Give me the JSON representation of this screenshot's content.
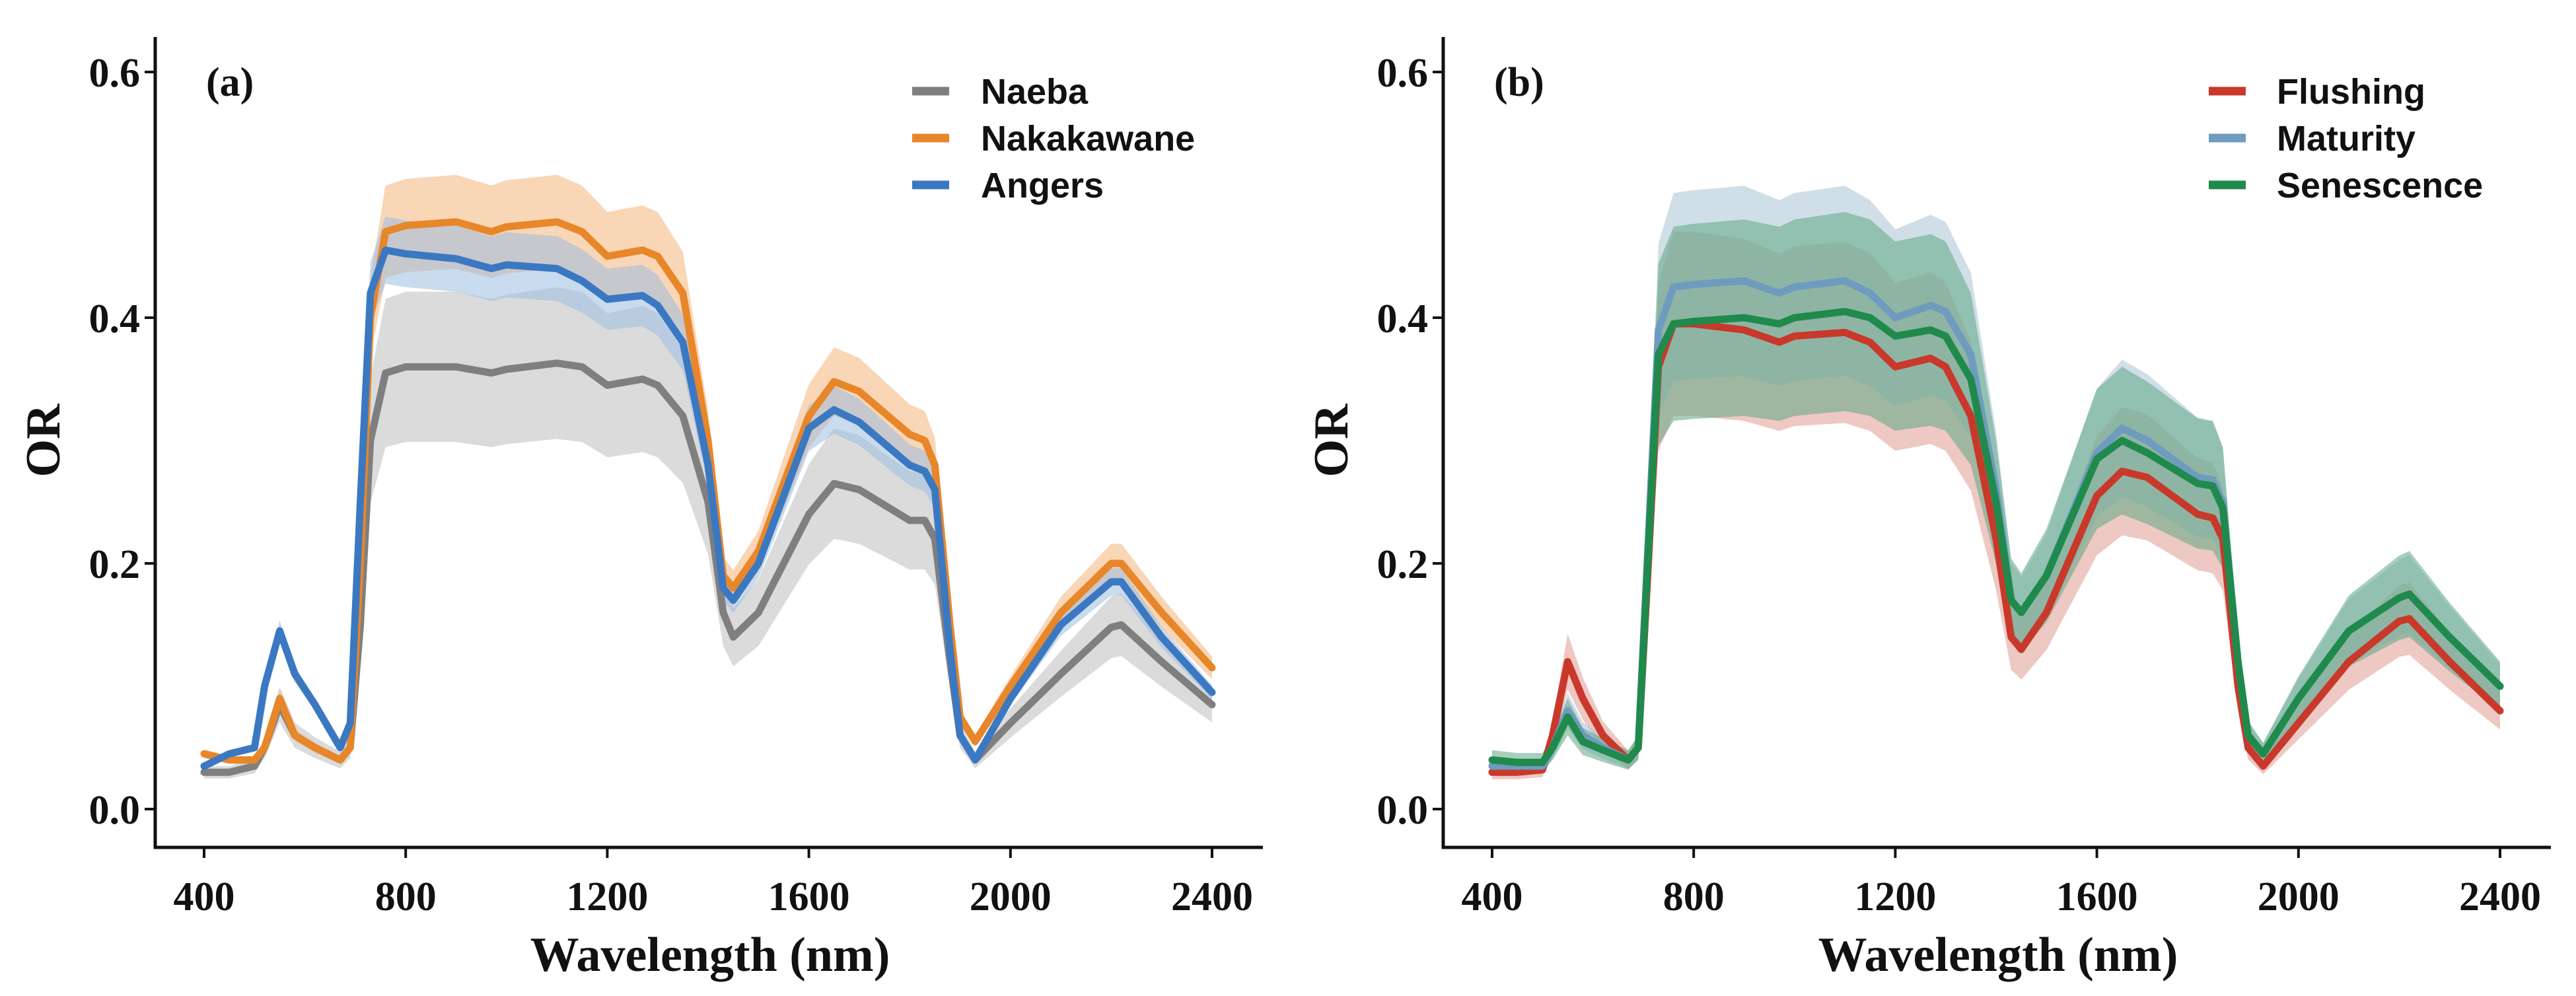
{
  "chart_data": [
    {
      "type": "line",
      "panel_label": "(a)",
      "xlabel": "Wavelength (nm)",
      "ylabel": "OR",
      "xlim": [
        400,
        2400
      ],
      "ylim": [
        0.0,
        0.6
      ],
      "xticks": [
        "400",
        "800",
        "1200",
        "1600",
        "2000",
        "2400"
      ],
      "yticks": [
        "0.0",
        "0.2",
        "0.4",
        "0.6"
      ],
      "legend_position": "top-right",
      "x": [
        400,
        450,
        500,
        520,
        550,
        580,
        620,
        670,
        690,
        710,
        730,
        760,
        800,
        900,
        970,
        1000,
        1100,
        1150,
        1200,
        1270,
        1300,
        1350,
        1400,
        1430,
        1450,
        1500,
        1600,
        1650,
        1700,
        1800,
        1830,
        1850,
        1880,
        1900,
        1930,
        2000,
        2100,
        2200,
        2220,
        2300,
        2400
      ],
      "series": [
        {
          "name": "Naeba",
          "color": "#7f7f7f",
          "band_color": "#bdbdbd",
          "band_rel": 0.17,
          "values": [
            0.03,
            0.03,
            0.035,
            0.05,
            0.085,
            0.06,
            0.05,
            0.04,
            0.05,
            0.15,
            0.3,
            0.355,
            0.36,
            0.36,
            0.355,
            0.358,
            0.363,
            0.36,
            0.345,
            0.35,
            0.345,
            0.32,
            0.25,
            0.16,
            0.14,
            0.16,
            0.24,
            0.265,
            0.26,
            0.235,
            0.235,
            0.22,
            0.12,
            0.06,
            0.04,
            0.07,
            0.11,
            0.148,
            0.15,
            0.12,
            0.085
          ]
        },
        {
          "name": "Nakakawane",
          "color": "#e8862a",
          "band_color": "#f2b57a",
          "band_rel": 0.08,
          "values": [
            0.045,
            0.04,
            0.04,
            0.05,
            0.09,
            0.06,
            0.05,
            0.04,
            0.05,
            0.2,
            0.4,
            0.47,
            0.475,
            0.478,
            0.47,
            0.474,
            0.478,
            0.47,
            0.45,
            0.455,
            0.45,
            0.42,
            0.3,
            0.19,
            0.18,
            0.21,
            0.32,
            0.348,
            0.34,
            0.305,
            0.3,
            0.28,
            0.15,
            0.075,
            0.055,
            0.1,
            0.16,
            0.2,
            0.2,
            0.16,
            0.115
          ]
        },
        {
          "name": "Angers",
          "color": "#3b78c2",
          "band_color": "#9dbde0",
          "band_rel": 0.06,
          "values": [
            0.035,
            0.045,
            0.05,
            0.1,
            0.145,
            0.11,
            0.085,
            0.05,
            0.07,
            0.25,
            0.42,
            0.455,
            0.452,
            0.448,
            0.44,
            0.443,
            0.44,
            0.43,
            0.415,
            0.418,
            0.41,
            0.38,
            0.28,
            0.18,
            0.17,
            0.2,
            0.31,
            0.325,
            0.315,
            0.28,
            0.275,
            0.26,
            0.13,
            0.06,
            0.04,
            0.09,
            0.15,
            0.185,
            0.185,
            0.14,
            0.095
          ]
        }
      ]
    },
    {
      "type": "line",
      "panel_label": "(b)",
      "xlabel": "Wavelength (nm)",
      "ylabel": "OR",
      "xlim": [
        400,
        2400
      ],
      "ylim": [
        0.0,
        0.6
      ],
      "xticks": [
        "400",
        "800",
        "1200",
        "1600",
        "2000",
        "2400"
      ],
      "yticks": [
        "0.0",
        "0.2",
        "0.4",
        "0.6"
      ],
      "legend_position": "top-right",
      "x": [
        400,
        450,
        500,
        520,
        550,
        580,
        620,
        670,
        690,
        710,
        730,
        760,
        800,
        900,
        970,
        1000,
        1100,
        1150,
        1200,
        1270,
        1300,
        1350,
        1400,
        1430,
        1450,
        1500,
        1600,
        1650,
        1700,
        1800,
        1830,
        1850,
        1880,
        1900,
        1930,
        2000,
        2100,
        2200,
        2220,
        2300,
        2400
      ],
      "series": [
        {
          "name": "Flushing",
          "color": "#c8392b",
          "band_color": "#e09a92",
          "band_rel": 0.19,
          "values": [
            0.03,
            0.03,
            0.032,
            0.06,
            0.12,
            0.09,
            0.06,
            0.04,
            0.05,
            0.2,
            0.36,
            0.395,
            0.395,
            0.39,
            0.38,
            0.385,
            0.388,
            0.38,
            0.36,
            0.367,
            0.36,
            0.32,
            0.22,
            0.14,
            0.13,
            0.16,
            0.255,
            0.275,
            0.27,
            0.24,
            0.237,
            0.22,
            0.1,
            0.05,
            0.035,
            0.07,
            0.12,
            0.153,
            0.155,
            0.12,
            0.08
          ]
        },
        {
          "name": "Maturity",
          "color": "#6f9bbf",
          "band_color": "#a9c3d6",
          "band_rel": 0.18,
          "values": [
            0.035,
            0.035,
            0.035,
            0.05,
            0.08,
            0.06,
            0.05,
            0.04,
            0.05,
            0.22,
            0.39,
            0.425,
            0.427,
            0.43,
            0.42,
            0.425,
            0.43,
            0.42,
            0.4,
            0.41,
            0.405,
            0.37,
            0.26,
            0.17,
            0.16,
            0.19,
            0.29,
            0.31,
            0.3,
            0.27,
            0.268,
            0.25,
            0.12,
            0.06,
            0.045,
            0.09,
            0.145,
            0.172,
            0.175,
            0.14,
            0.1
          ]
        },
        {
          "name": "Senescence",
          "color": "#1f8a4c",
          "band_color": "#5fa883",
          "band_rel": 0.2,
          "values": [
            0.04,
            0.038,
            0.038,
            0.05,
            0.075,
            0.055,
            0.048,
            0.04,
            0.05,
            0.21,
            0.37,
            0.395,
            0.397,
            0.4,
            0.395,
            0.4,
            0.405,
            0.4,
            0.385,
            0.39,
            0.385,
            0.35,
            0.25,
            0.17,
            0.16,
            0.19,
            0.285,
            0.3,
            0.29,
            0.265,
            0.263,
            0.245,
            0.12,
            0.06,
            0.045,
            0.09,
            0.145,
            0.172,
            0.175,
            0.14,
            0.1
          ]
        }
      ]
    }
  ]
}
